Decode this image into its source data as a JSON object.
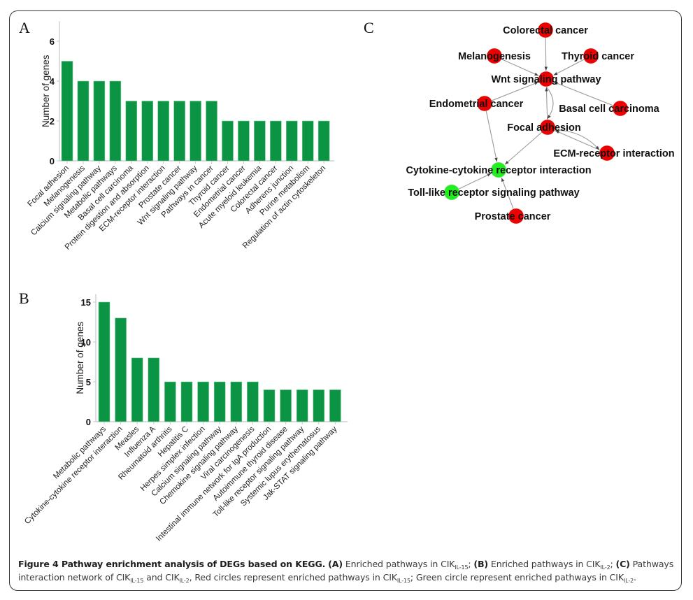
{
  "panels": {
    "a": "A",
    "b": "B",
    "c": "C"
  },
  "chart_data": [
    {
      "id": "A",
      "type": "bar",
      "title": "",
      "xlabel": "",
      "ylabel": "Number of genes",
      "ylim": [
        0,
        7
      ],
      "yticks": [
        0,
        2,
        4,
        6
      ],
      "grid": false,
      "color": "#0a9444",
      "categories": [
        "Focal adhesion",
        "Melanogenesis",
        "Calcium signaling pathway",
        "Metabolic pathways",
        "Basal cell carcinoma",
        "Protein digestion and absorption",
        "ECM-receptor interaction",
        "Prostate cancer",
        "Wnt signaling pathway",
        "Pathways in cancer",
        "Thyroid cancer",
        "Endometrial cancer",
        "Acute myeloid leukemia",
        "Colorectal cancer",
        "Adherens junction",
        "Purine metabolism",
        "Regulation of actin cytoskeleton"
      ],
      "values": [
        5,
        4,
        4,
        4,
        3,
        3,
        3,
        3,
        3,
        3,
        2,
        2,
        2,
        2,
        2,
        2,
        2
      ]
    },
    {
      "id": "B",
      "type": "bar",
      "title": "",
      "xlabel": "",
      "ylabel": "Number of genes",
      "ylim": [
        0,
        16
      ],
      "yticks": [
        0,
        5,
        10,
        15
      ],
      "grid": false,
      "color": "#0a9444",
      "categories": [
        "Metabolic pathways",
        "Cytokine-cytokine receptor interaction",
        "Measles",
        "Influenza A",
        "Rheumatoid arthritis",
        "Hepatitis C",
        "Herpes simplex infection",
        "Calcium signaling pathway",
        "Chemokine signaling pathway",
        "Viral carcinogenesis",
        "Intestinal immune network for IgA production",
        "Autoimmune thyroid disease",
        "Toll-like receptor signaling pathway",
        "Systemic lupus erythematosus",
        "Jak-STAT signaling pathway"
      ],
      "values": [
        15,
        13,
        8,
        8,
        5,
        5,
        5,
        5,
        5,
        5,
        4,
        4,
        4,
        4,
        4
      ]
    }
  ],
  "network": {
    "colors": {
      "IL-15": "#ee0000",
      "IL-2": "#22ee22",
      "edge": "#9a9a9a"
    },
    "nodes": [
      {
        "id": "colorectal",
        "label": "Colorectal cancer",
        "group": "IL-15"
      },
      {
        "id": "melanogenesis",
        "label": "Melanogenesis",
        "group": "IL-15"
      },
      {
        "id": "thyroid",
        "label": "Thyroid cancer",
        "group": "IL-15"
      },
      {
        "id": "wnt",
        "label": "Wnt signaling pathway",
        "group": "IL-15"
      },
      {
        "id": "endometrial",
        "label": "Endometrial cancer",
        "group": "IL-15"
      },
      {
        "id": "basal",
        "label": "Basal cell carcinoma",
        "group": "IL-15"
      },
      {
        "id": "focal",
        "label": "Focal adhesion",
        "group": "IL-15"
      },
      {
        "id": "ecm",
        "label": "ECM-receptor interaction",
        "group": "IL-15"
      },
      {
        "id": "cytokine",
        "label": "Cytokine-cytokine receptor interaction",
        "group": "IL-2"
      },
      {
        "id": "toll",
        "label": "Toll-like receptor signaling pathway",
        "group": "IL-2"
      },
      {
        "id": "prostate",
        "label": "Prostate cancer",
        "group": "IL-15"
      }
    ],
    "edges": [
      {
        "from": "colorectal",
        "to": "wnt"
      },
      {
        "from": "melanogenesis",
        "to": "wnt"
      },
      {
        "from": "thyroid",
        "to": "wnt"
      },
      {
        "from": "endometrial",
        "to": "wnt"
      },
      {
        "from": "basal",
        "to": "wnt"
      },
      {
        "from": "focal",
        "to": "wnt"
      },
      {
        "from": "wnt",
        "to": "focal"
      },
      {
        "from": "endometrial",
        "to": "cytokine"
      },
      {
        "from": "focal",
        "to": "cytokine"
      },
      {
        "from": "ecm",
        "to": "focal"
      },
      {
        "from": "focal",
        "to": "ecm"
      },
      {
        "from": "toll",
        "to": "cytokine"
      },
      {
        "from": "prostate",
        "to": "cytokine"
      }
    ]
  },
  "caption": {
    "title": "Figure 4 Pathway enrichment analysis of DEGs based on KEGG.",
    "a_tag": "(A)",
    "a_text": " Enriched pathways in CIK",
    "sub_il15": "IL-15",
    "sub_il2": "IL-2",
    "b_tag": "(B)",
    "b_text": " Enriched pathways in CIK",
    "c_tag": "(C)",
    "c_text": " Pathways interaction network of CIK",
    "and_text": " and CIK",
    "red_text": ", Red circles represent enriched pathways in CIK",
    "green_text": "; Green circle represent enriched pathways in CIK",
    "sep": "; ",
    "end": "."
  }
}
